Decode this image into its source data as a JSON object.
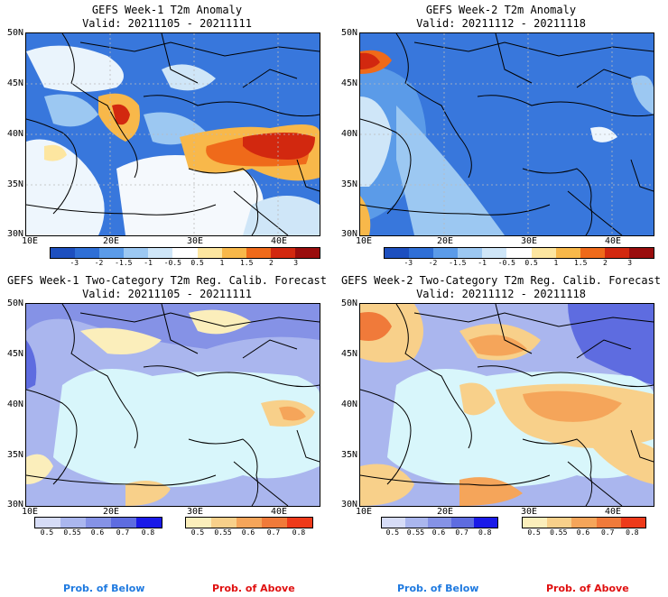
{
  "panels": [
    {
      "title": "GEFS Week-1 T2m Anomaly",
      "valid": "Valid: 20211105 - 20211111"
    },
    {
      "title": "GEFS Week-2 T2m Anomaly",
      "valid": "Valid: 20211112 - 20211118"
    },
    {
      "title": "GEFS Week-1 Two-Category T2m Reg. Calib. Forecast",
      "valid": "Valid: 20211105 - 20211111"
    },
    {
      "title": "GEFS Week-2 Two-Category T2m Reg. Calib. Forecast",
      "valid": "Valid: 20211112 - 20211118"
    }
  ],
  "lat_labels": [
    "50N",
    "45N",
    "40N",
    "35N",
    "30N"
  ],
  "lon_labels": [
    "10E",
    "20E",
    "30E",
    "40E"
  ],
  "anomaly_scale": {
    "labels": [
      "-3",
      "-2",
      "-1.5",
      "-1",
      "-0.5",
      "0.5",
      "1",
      "1.5",
      "2",
      "3"
    ],
    "colors": [
      "#1d4fbf",
      "#2f6fd6",
      "#5b9be8",
      "#9cc8f2",
      "#cfe6f8",
      "#ffffff",
      "#fde6a0",
      "#f8b84a",
      "#ef6a1a",
      "#d2280f",
      "#9a0d0d"
    ]
  },
  "prob_below": {
    "labels": [
      "0.5",
      "0.55",
      "0.6",
      "0.7",
      "0.8"
    ],
    "colors": [
      "#d6dcf7",
      "#aab6ee",
      "#8592e6",
      "#5e6ce0",
      "#1a1ae8"
    ],
    "caption": "Prob. of Below",
    "caption_color": "#1f7ae0"
  },
  "prob_above": {
    "labels": [
      "0.5",
      "0.55",
      "0.6",
      "0.7",
      "0.8"
    ],
    "colors": [
      "#fbeebb",
      "#f8d08a",
      "#f5a55a",
      "#f07a3a",
      "#ee3a1a"
    ],
    "caption": "Prob. of Above",
    "caption_color": "#e01010"
  },
  "sea_color": "#d8f6fb"
}
